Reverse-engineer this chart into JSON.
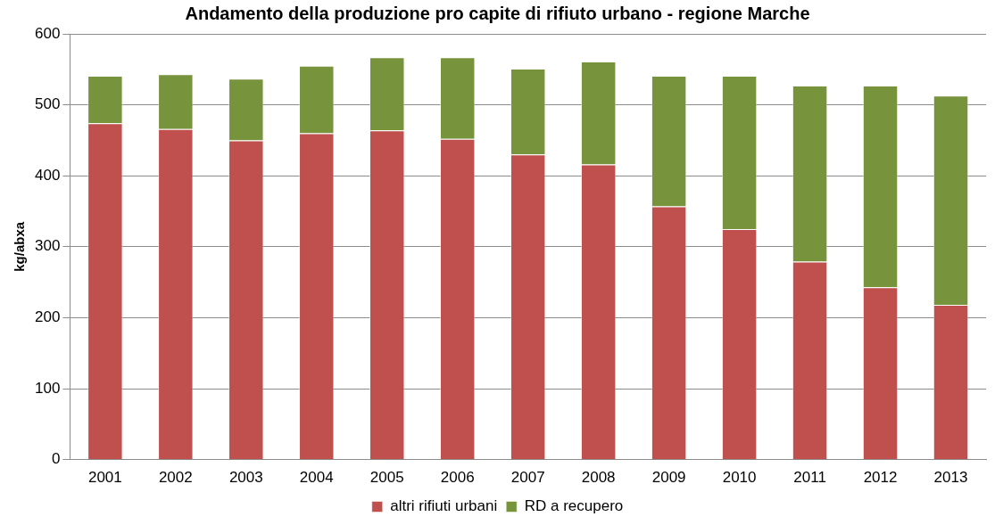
{
  "chart_data": {
    "type": "bar",
    "title": "Andamento della produzione pro capite di rifiuto urbano - regione Marche",
    "ylabel": "kg/abxa",
    "categories": [
      "2001",
      "2002",
      "2003",
      "2004",
      "2005",
      "2006",
      "2007",
      "2008",
      "2009",
      "2010",
      "2011",
      "2012",
      "2013"
    ],
    "stacked": true,
    "series": [
      {
        "name": "altri rifiuti urbani",
        "color": "#c0504d",
        "values": [
          474,
          466,
          450,
          460,
          464,
          452,
          430,
          416,
          357,
          325,
          279,
          243,
          218
        ]
      },
      {
        "name": "RD a recupero",
        "color": "#77933c",
        "values": [
          67,
          77,
          87,
          95,
          103,
          115,
          121,
          145,
          184,
          216,
          248,
          284,
          295
        ]
      }
    ],
    "ylim": [
      0,
      600
    ],
    "yticks": [
      0,
      100,
      200,
      300,
      400,
      500,
      600
    ],
    "grid": "y",
    "legend": "bottom"
  }
}
